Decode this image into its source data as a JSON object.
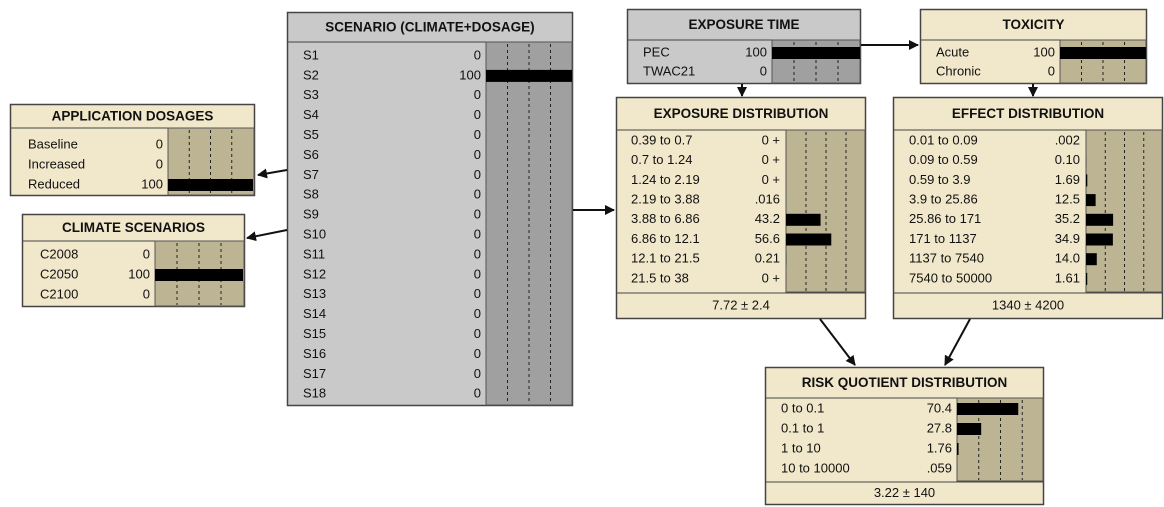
{
  "nodes": [
    {
      "title": "APPLICATION DOSAGES",
      "states": [
        {
          "name": "Baseline",
          "value": 0
        },
        {
          "name": "Increased",
          "value": 0
        },
        {
          "name": "Reduced",
          "value": 100
        }
      ]
    },
    {
      "title": "CLIMATE SCENARIOS",
      "states": [
        {
          "name": "C2008",
          "value": 0
        },
        {
          "name": "C2050",
          "value": 100
        },
        {
          "name": "C2100",
          "value": 0
        }
      ]
    },
    {
      "title": "SCENARIO (CLIMATE+DOSAGE)",
      "states": [
        {
          "name": "S1",
          "value": 0
        },
        {
          "name": "S2",
          "value": 100
        },
        {
          "name": "S3",
          "value": 0
        },
        {
          "name": "S4",
          "value": 0
        },
        {
          "name": "S5",
          "value": 0
        },
        {
          "name": "S6",
          "value": 0
        },
        {
          "name": "S7",
          "value": 0
        },
        {
          "name": "S8",
          "value": 0
        },
        {
          "name": "S9",
          "value": 0
        },
        {
          "name": "S10",
          "value": 0
        },
        {
          "name": "S11",
          "value": 0
        },
        {
          "name": "S12",
          "value": 0
        },
        {
          "name": "S13",
          "value": 0
        },
        {
          "name": "S14",
          "value": 0
        },
        {
          "name": "S15",
          "value": 0
        },
        {
          "name": "S16",
          "value": 0
        },
        {
          "name": "S17",
          "value": 0
        },
        {
          "name": "S18",
          "value": 0
        }
      ]
    },
    {
      "title": "EXPOSURE TIME",
      "states": [
        {
          "name": "PEC",
          "value": 100
        },
        {
          "name": "TWAC21",
          "value": 0
        }
      ]
    },
    {
      "title": "TOXICITY",
      "states": [
        {
          "name": "Acute",
          "value": 100
        },
        {
          "name": "Chronic",
          "value": 0
        }
      ]
    },
    {
      "title": "EXPOSURE DISTRIBUTION",
      "states": [
        {
          "name": "0.39 to 0.7",
          "value": 0,
          "label": "0 +"
        },
        {
          "name": "0.7 to 1.24",
          "value": 0,
          "label": "0 +"
        },
        {
          "name": "1.24 to 2.19",
          "value": 0,
          "label": "0 +"
        },
        {
          "name": "2.19 to 3.88",
          "value": 0.016,
          "label": ".016"
        },
        {
          "name": "3.88 to 6.86",
          "value": 43.2
        },
        {
          "name": "6.86 to 12.1",
          "value": 56.6
        },
        {
          "name": "12.1 to 21.5",
          "value": 0.21
        },
        {
          "name": "21.5 to 38",
          "value": 0,
          "label": "0 +"
        }
      ],
      "footer": "7.72 ± 2.4"
    },
    {
      "title": "EFFECT DISTRIBUTION",
      "states": [
        {
          "name": "0.01 to 0.09",
          "value": 0.002,
          "label": ".002"
        },
        {
          "name": "0.09 to 0.59",
          "value": 0.1,
          "label": "0.10"
        },
        {
          "name": "0.59 to 3.9",
          "value": 1.69
        },
        {
          "name": "3.9 to 25.86",
          "value": 12.5
        },
        {
          "name": "25.86 to 171",
          "value": 35.2
        },
        {
          "name": "171 to 1137",
          "value": 34.9
        },
        {
          "name": "1137 to 7540",
          "value": 14,
          "label": "14.0"
        },
        {
          "name": "7540 to 50000",
          "value": 1.61
        }
      ],
      "footer": "1340 ± 4200"
    },
    {
      "title": "RISK QUOTIENT DISTRIBUTION",
      "states": [
        {
          "name": "0 to 0.1",
          "value": 70.4
        },
        {
          "name": "0.1 to 1",
          "value": 27.8
        },
        {
          "name": "1 to 10",
          "value": 1.76
        },
        {
          "name": "10 to 10000",
          "value": 0.059,
          "label": ".059"
        }
      ],
      "footer": "3.22 ± 140"
    }
  ]
}
